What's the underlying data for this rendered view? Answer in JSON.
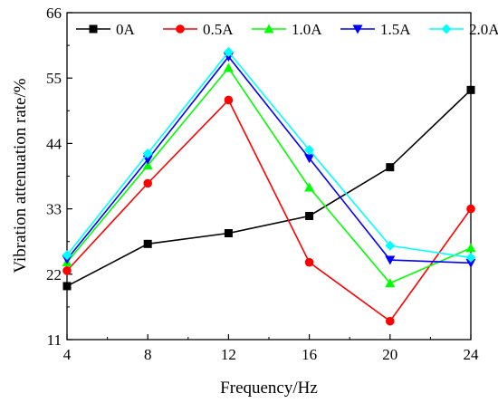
{
  "chart_data": {
    "type": "line",
    "x": [
      4,
      8,
      12,
      16,
      20,
      24
    ],
    "x_ticks": [
      "4",
      "8",
      "12",
      "16",
      "20",
      "24"
    ],
    "y_ticks": [
      "11",
      "22",
      "33",
      "44",
      "55",
      "66"
    ],
    "xlabel": "Frequency/Hz",
    "ylabel": "Vibration attenuation rate/%",
    "xlim": [
      4,
      24
    ],
    "ylim": [
      11,
      66
    ],
    "grid": false,
    "legend_position": "top",
    "series": [
      {
        "name": "0A",
        "color": "#000000",
        "marker": "square",
        "values": [
          20.0,
          27.1,
          28.9,
          31.8,
          40.0,
          53.0
        ]
      },
      {
        "name": "0.5A",
        "color": "#ff0000",
        "marker": "circle",
        "values": [
          22.6,
          37.3,
          51.3,
          24.0,
          14.1,
          33.0
        ]
      },
      {
        "name": "1.0A",
        "color": "#00ff00",
        "marker": "triangle-up",
        "values": [
          24.0,
          40.3,
          56.7,
          36.6,
          20.5,
          26.4
        ]
      },
      {
        "name": "1.5A",
        "color": "#0000ff",
        "marker": "triangle-down",
        "values": [
          24.5,
          41.3,
          58.6,
          41.5,
          24.4,
          23.9
        ]
      },
      {
        "name": "2.0A",
        "color": "#00ffff",
        "marker": "diamond",
        "values": [
          25.2,
          42.3,
          59.4,
          42.9,
          26.8,
          24.8
        ]
      }
    ]
  }
}
